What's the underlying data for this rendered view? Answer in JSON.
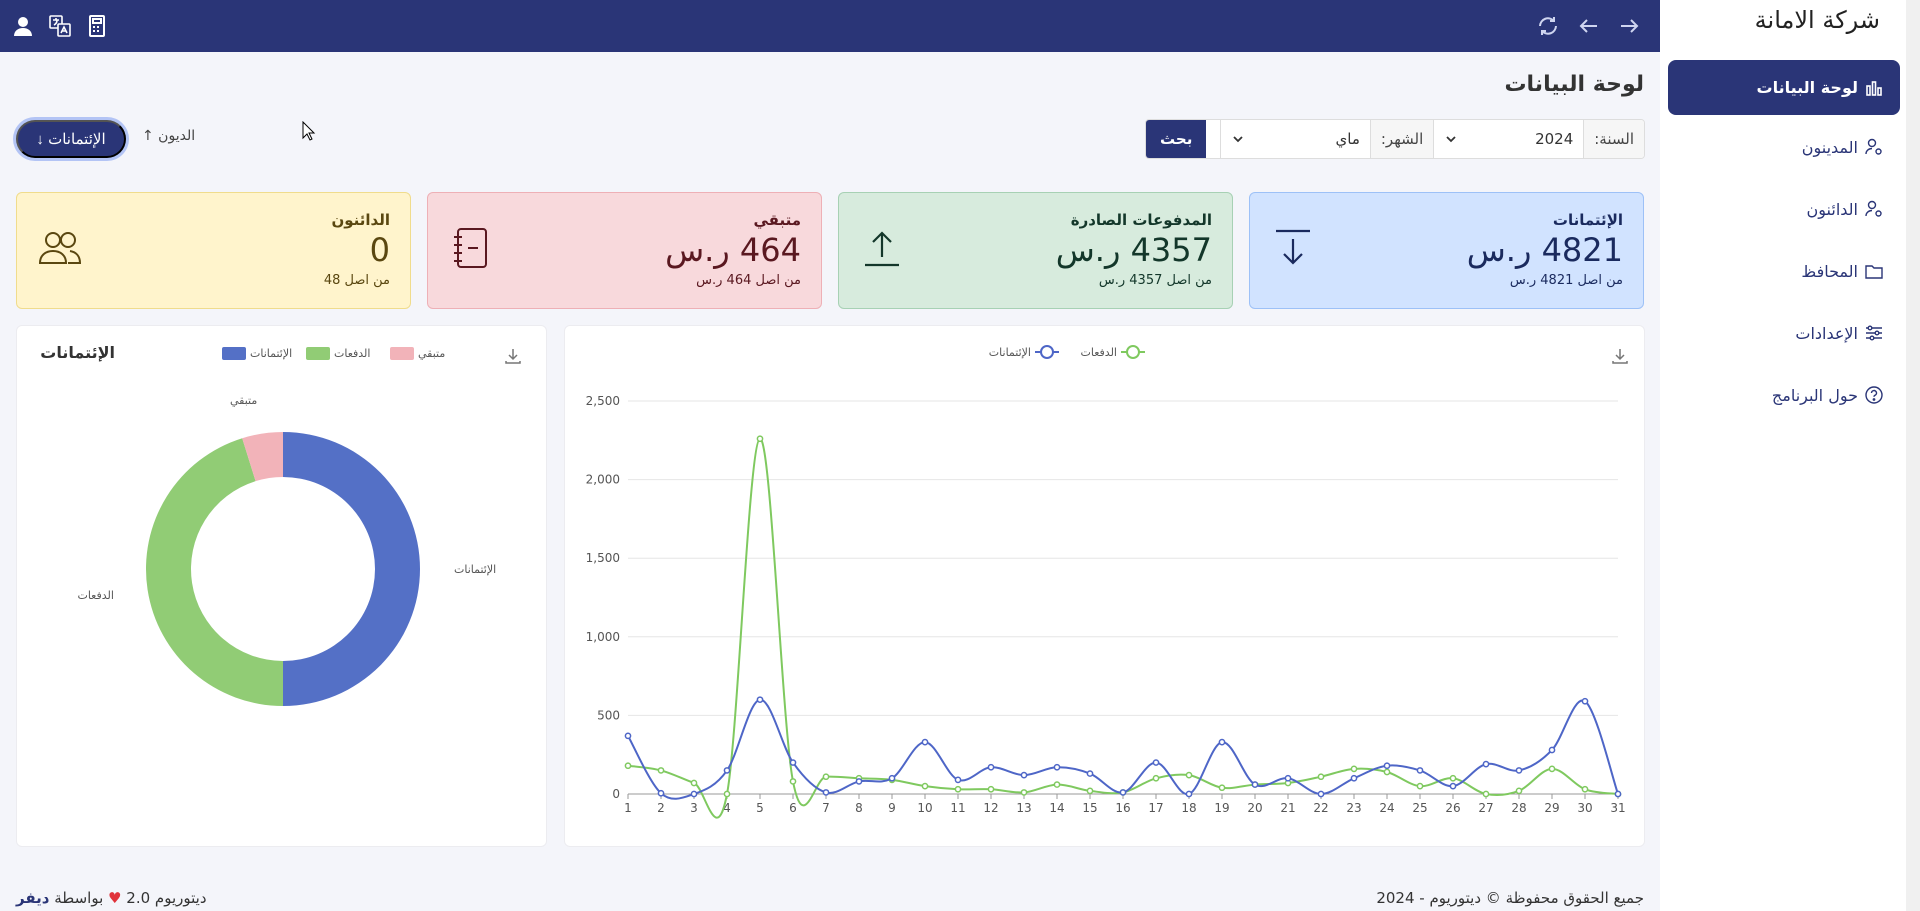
{
  "brand": "شركة الامانة",
  "sidebar": {
    "items": [
      {
        "label": "لوحة البيانات",
        "icon": "bar-chart-icon",
        "active": true
      },
      {
        "label": "المدينون",
        "icon": "user-gear-icon"
      },
      {
        "label": "الدائنون",
        "icon": "user-gear-icon"
      },
      {
        "label": "المحافظ",
        "icon": "folder-icon"
      },
      {
        "label": "الإعدادات",
        "icon": "sliders-icon"
      },
      {
        "label": "حول البرنامج",
        "icon": "help-circle-icon"
      }
    ]
  },
  "topbar": {
    "right_icons": [
      "forward-arrow-icon",
      "back-arrow-icon",
      "refresh-icon"
    ],
    "left_icons": [
      "calculator-icon",
      "translate-icon",
      "user-icon"
    ]
  },
  "page": {
    "title": "لوحة البيانات"
  },
  "filters": {
    "year_label": "السنة:",
    "year_value": "2024",
    "month_label": "الشهر:",
    "month_value": "ماي",
    "search_button": "بحث"
  },
  "toggles": {
    "active_label": "الإئتمانات ↓",
    "other_label": "الديون ↑"
  },
  "cards": [
    {
      "title": "الإئتمانات",
      "value": "4821 ر.س",
      "sub": "من اصل 4821 ر.س",
      "icon": "download-arrow-icon"
    },
    {
      "title": "المدفوعات الصادرة",
      "value": "4357 ر.س",
      "sub": "من اصل 4357 ر.س",
      "icon": "upload-arrow-icon"
    },
    {
      "title": "متبقي",
      "value": "464 ر.س",
      "sub": "من اصل 464 ر.س",
      "icon": "notebook-icon"
    },
    {
      "title": "الدائنون",
      "value": "0",
      "sub": "من اصل 48",
      "icon": "users-icon"
    }
  ],
  "chart_data": [
    {
      "type": "line",
      "x": [
        1,
        2,
        3,
        4,
        5,
        6,
        7,
        8,
        9,
        10,
        11,
        12,
        13,
        14,
        15,
        16,
        17,
        18,
        19,
        20,
        21,
        22,
        23,
        24,
        25,
        26,
        27,
        28,
        29,
        30,
        31
      ],
      "series": [
        {
          "name": "الإئتمانات",
          "color": "#4e66c7",
          "values": [
            370,
            5,
            0,
            150,
            600,
            200,
            10,
            80,
            100,
            330,
            90,
            170,
            120,
            170,
            130,
            10,
            200,
            0,
            330,
            60,
            100,
            0,
            100,
            180,
            150,
            50,
            190,
            150,
            280,
            590,
            0
          ]
        },
        {
          "name": "الدفعات",
          "color": "#7fc95f",
          "values": [
            180,
            150,
            70,
            0,
            2260,
            80,
            110,
            100,
            90,
            50,
            30,
            30,
            10,
            60,
            20,
            10,
            100,
            120,
            40,
            60,
            70,
            110,
            160,
            140,
            50,
            100,
            0,
            20,
            160,
            30,
            0
          ]
        }
      ],
      "ylim": [
        0,
        2500
      ],
      "yticks": [
        "0",
        "500",
        "1,000",
        "1,500",
        "2,000",
        "2,500"
      ],
      "grid": true,
      "legend": "top-center"
    },
    {
      "type": "pie",
      "title": "الإئتمانات",
      "categories": [
        "الإئتمانات",
        "الدفعات",
        "متبقي"
      ],
      "values": [
        4821,
        4357,
        464
      ],
      "colors": [
        "#5470c6",
        "#91cc75",
        "#f2b3b9"
      ],
      "legend_labels": [
        "الإئتمانات",
        "الدفعات",
        "متبقي"
      ],
      "legend": "top"
    }
  ],
  "footer": {
    "copyright": "جميع الحقوق محفوظة © ديتوريوم - 2024",
    "version": "ديتوريوم 2.0",
    "by": "بواسطة",
    "author": "ديفر"
  }
}
